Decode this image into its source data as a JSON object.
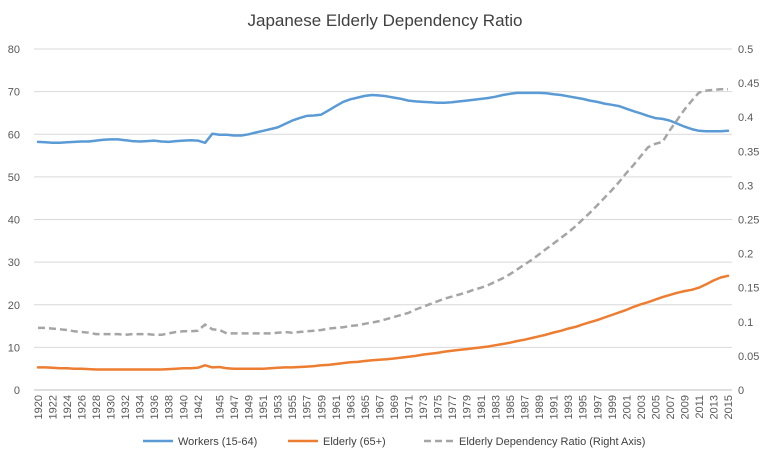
{
  "chart_data": {
    "type": "line",
    "title": "Japanese Elderly Dependency Ratio",
    "xlabel": "",
    "ylabel": "",
    "ylim": [
      0,
      80
    ],
    "y2lim": [
      0,
      0.5
    ],
    "yticks": [
      0,
      10,
      20,
      30,
      40,
      50,
      60,
      70,
      80
    ],
    "y2ticks": [
      "0",
      "0.05",
      "0.1",
      "0.15",
      "0.2",
      "0.25",
      "0.3",
      "0.35",
      "0.4",
      "0.45",
      "0.5"
    ],
    "grid": "horizontal",
    "legend_position": "bottom",
    "x": [
      1920,
      1921,
      1922,
      1923,
      1924,
      1925,
      1926,
      1927,
      1928,
      1929,
      1930,
      1931,
      1932,
      1933,
      1934,
      1935,
      1936,
      1937,
      1938,
      1939,
      1940,
      1941,
      1942,
      1943,
      1944,
      1945,
      1946,
      1947,
      1948,
      1949,
      1950,
      1951,
      1952,
      1953,
      1954,
      1955,
      1956,
      1957,
      1958,
      1959,
      1960,
      1961,
      1962,
      1963,
      1964,
      1965,
      1966,
      1967,
      1968,
      1969,
      1970,
      1971,
      1972,
      1973,
      1974,
      1975,
      1976,
      1977,
      1978,
      1979,
      1980,
      1981,
      1982,
      1983,
      1984,
      1985,
      1986,
      1987,
      1988,
      1989,
      1990,
      1991,
      1992,
      1993,
      1994,
      1995,
      1996,
      1997,
      1998,
      1999,
      2000,
      2001,
      2002,
      2003,
      2004,
      2005,
      2006,
      2007,
      2008,
      2009,
      2010,
      2011,
      2012,
      2013,
      2014,
      2015
    ],
    "xticklabels": [
      "1920",
      "1922",
      "1924",
      "1926",
      "1928",
      "1930",
      "1932",
      "1934",
      "1936",
      "1938",
      "1940",
      "1942",
      "1945",
      "1947",
      "1949",
      "1951",
      "1953",
      "1955",
      "1957",
      "1959",
      "1961",
      "1963",
      "1965",
      "1967",
      "1969",
      "1971",
      "1973",
      "1975",
      "1977",
      "1979",
      "1981",
      "1983",
      "1985",
      "1987",
      "1989",
      "1991",
      "1993",
      "1995",
      "1997",
      "1999",
      "2001",
      "2003",
      "2005",
      "2007",
      "2009",
      "2011",
      "2013",
      "2015"
    ],
    "series": [
      {
        "name": "Workers (15-64)",
        "axis": "left",
        "color": "#5B9BD5",
        "style": "solid",
        "values": [
          58.2,
          58.1,
          58.0,
          58.0,
          58.1,
          58.2,
          58.3,
          58.3,
          58.5,
          58.7,
          58.8,
          58.8,
          58.6,
          58.4,
          58.3,
          58.4,
          58.5,
          58.3,
          58.2,
          58.4,
          58.5,
          58.6,
          58.5,
          58.0,
          60.1,
          59.9,
          59.9,
          59.7,
          59.7,
          60.0,
          60.4,
          60.8,
          61.2,
          61.6,
          62.4,
          63.2,
          63.8,
          64.3,
          64.4,
          64.6,
          65.6,
          66.6,
          67.6,
          68.2,
          68.6,
          69.0,
          69.2,
          69.1,
          68.9,
          68.6,
          68.3,
          67.9,
          67.7,
          67.6,
          67.5,
          67.4,
          67.4,
          67.5,
          67.7,
          67.9,
          68.1,
          68.3,
          68.5,
          68.8,
          69.2,
          69.5,
          69.7,
          69.7,
          69.7,
          69.7,
          69.6,
          69.4,
          69.2,
          68.9,
          68.6,
          68.3,
          67.9,
          67.6,
          67.2,
          66.9,
          66.6,
          66.0,
          65.4,
          64.9,
          64.3,
          63.8,
          63.6,
          63.2,
          62.5,
          61.8,
          61.2,
          60.8,
          60.7,
          60.7,
          60.7,
          60.8
        ]
      },
      {
        "name": "Elderly (65+)",
        "axis": "left",
        "color": "#ED7D31",
        "style": "solid",
        "values": [
          5.3,
          5.3,
          5.2,
          5.1,
          5.1,
          5.0,
          5.0,
          4.9,
          4.8,
          4.8,
          4.8,
          4.8,
          4.8,
          4.8,
          4.8,
          4.8,
          4.8,
          4.8,
          4.9,
          5.0,
          5.1,
          5.1,
          5.2,
          5.8,
          5.3,
          5.4,
          5.1,
          5.0,
          5.0,
          5.0,
          5.0,
          5.0,
          5.1,
          5.2,
          5.3,
          5.3,
          5.4,
          5.5,
          5.6,
          5.8,
          5.9,
          6.1,
          6.3,
          6.5,
          6.6,
          6.8,
          7.0,
          7.1,
          7.2,
          7.4,
          7.6,
          7.8,
          8.0,
          8.3,
          8.5,
          8.7,
          9.0,
          9.2,
          9.4,
          9.6,
          9.8,
          10.0,
          10.2,
          10.5,
          10.8,
          11.1,
          11.5,
          11.8,
          12.2,
          12.6,
          13.0,
          13.5,
          13.9,
          14.4,
          14.8,
          15.4,
          15.9,
          16.4,
          17.0,
          17.6,
          18.2,
          18.8,
          19.5,
          20.1,
          20.6,
          21.2,
          21.8,
          22.3,
          22.8,
          23.2,
          23.5,
          24.0,
          24.8,
          25.7,
          26.4,
          26.8
        ]
      },
      {
        "name": "Elderly Dependency Ratio (Right Axis)",
        "axis": "right",
        "color": "#A5A5A5",
        "style": "dashed",
        "values": [
          0.091,
          0.091,
          0.09,
          0.089,
          0.088,
          0.086,
          0.085,
          0.084,
          0.082,
          0.082,
          0.082,
          0.082,
          0.081,
          0.082,
          0.082,
          0.082,
          0.081,
          0.081,
          0.083,
          0.085,
          0.086,
          0.086,
          0.087,
          0.096,
          0.089,
          0.088,
          0.083,
          0.083,
          0.083,
          0.083,
          0.083,
          0.083,
          0.083,
          0.084,
          0.085,
          0.084,
          0.085,
          0.086,
          0.087,
          0.088,
          0.09,
          0.091,
          0.092,
          0.094,
          0.095,
          0.097,
          0.099,
          0.101,
          0.104,
          0.107,
          0.11,
          0.113,
          0.118,
          0.122,
          0.126,
          0.13,
          0.134,
          0.137,
          0.14,
          0.143,
          0.147,
          0.15,
          0.154,
          0.159,
          0.164,
          0.17,
          0.177,
          0.184,
          0.191,
          0.199,
          0.207,
          0.215,
          0.223,
          0.231,
          0.24,
          0.25,
          0.26,
          0.271,
          0.282,
          0.293,
          0.305,
          0.318,
          0.33,
          0.343,
          0.356,
          0.361,
          0.364,
          0.381,
          0.396,
          0.411,
          0.424,
          0.436,
          0.439,
          0.44,
          0.441,
          0.441
        ]
      }
    ]
  }
}
